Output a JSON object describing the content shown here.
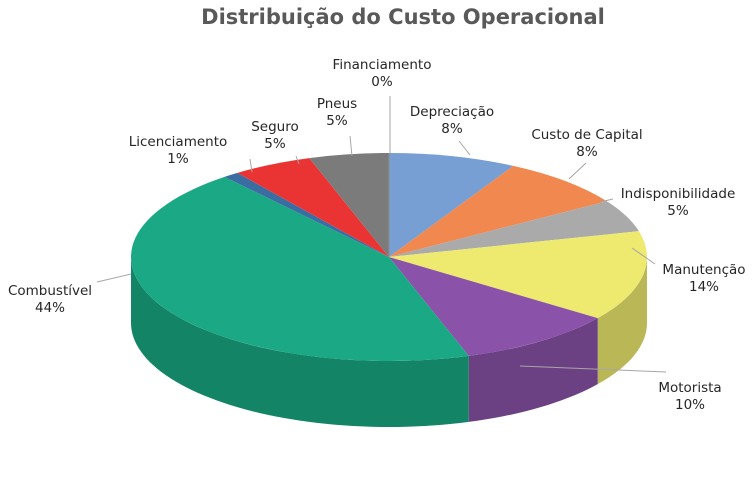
{
  "chart_data": {
    "type": "pie",
    "style": "3d",
    "title": "Distribuição do Custo Operacional",
    "legend": "none",
    "slices": [
      {
        "name": "Depreciação",
        "value": 8,
        "label": "8%",
        "color": "#779fd3"
      },
      {
        "name": "Custo de Capital",
        "value": 8,
        "label": "8%",
        "color": "#f0884f"
      },
      {
        "name": "Indisponibilidade",
        "value": 5,
        "label": "5%",
        "color": "#aaaaaa"
      },
      {
        "name": "Manutenção",
        "value": 14,
        "label": "14%",
        "color": "#eeea6f"
      },
      {
        "name": "Motorista",
        "value": 10,
        "label": "10%",
        "color": "#8a53a9"
      },
      {
        "name": "Combustível",
        "value": 44,
        "label": "44%",
        "color": "#1aa984"
      },
      {
        "name": "Licenciamento",
        "value": 1,
        "label": "1%",
        "color": "#3a6da1"
      },
      {
        "name": "Seguro",
        "value": 5,
        "label": "5%",
        "color": "#ea3434"
      },
      {
        "name": "Pneus",
        "value": 5,
        "label": "5%",
        "color": "#7b7b7b"
      },
      {
        "name": "Financiamento",
        "value": 0,
        "label": "0%",
        "color": "#8c8c8c"
      }
    ]
  }
}
